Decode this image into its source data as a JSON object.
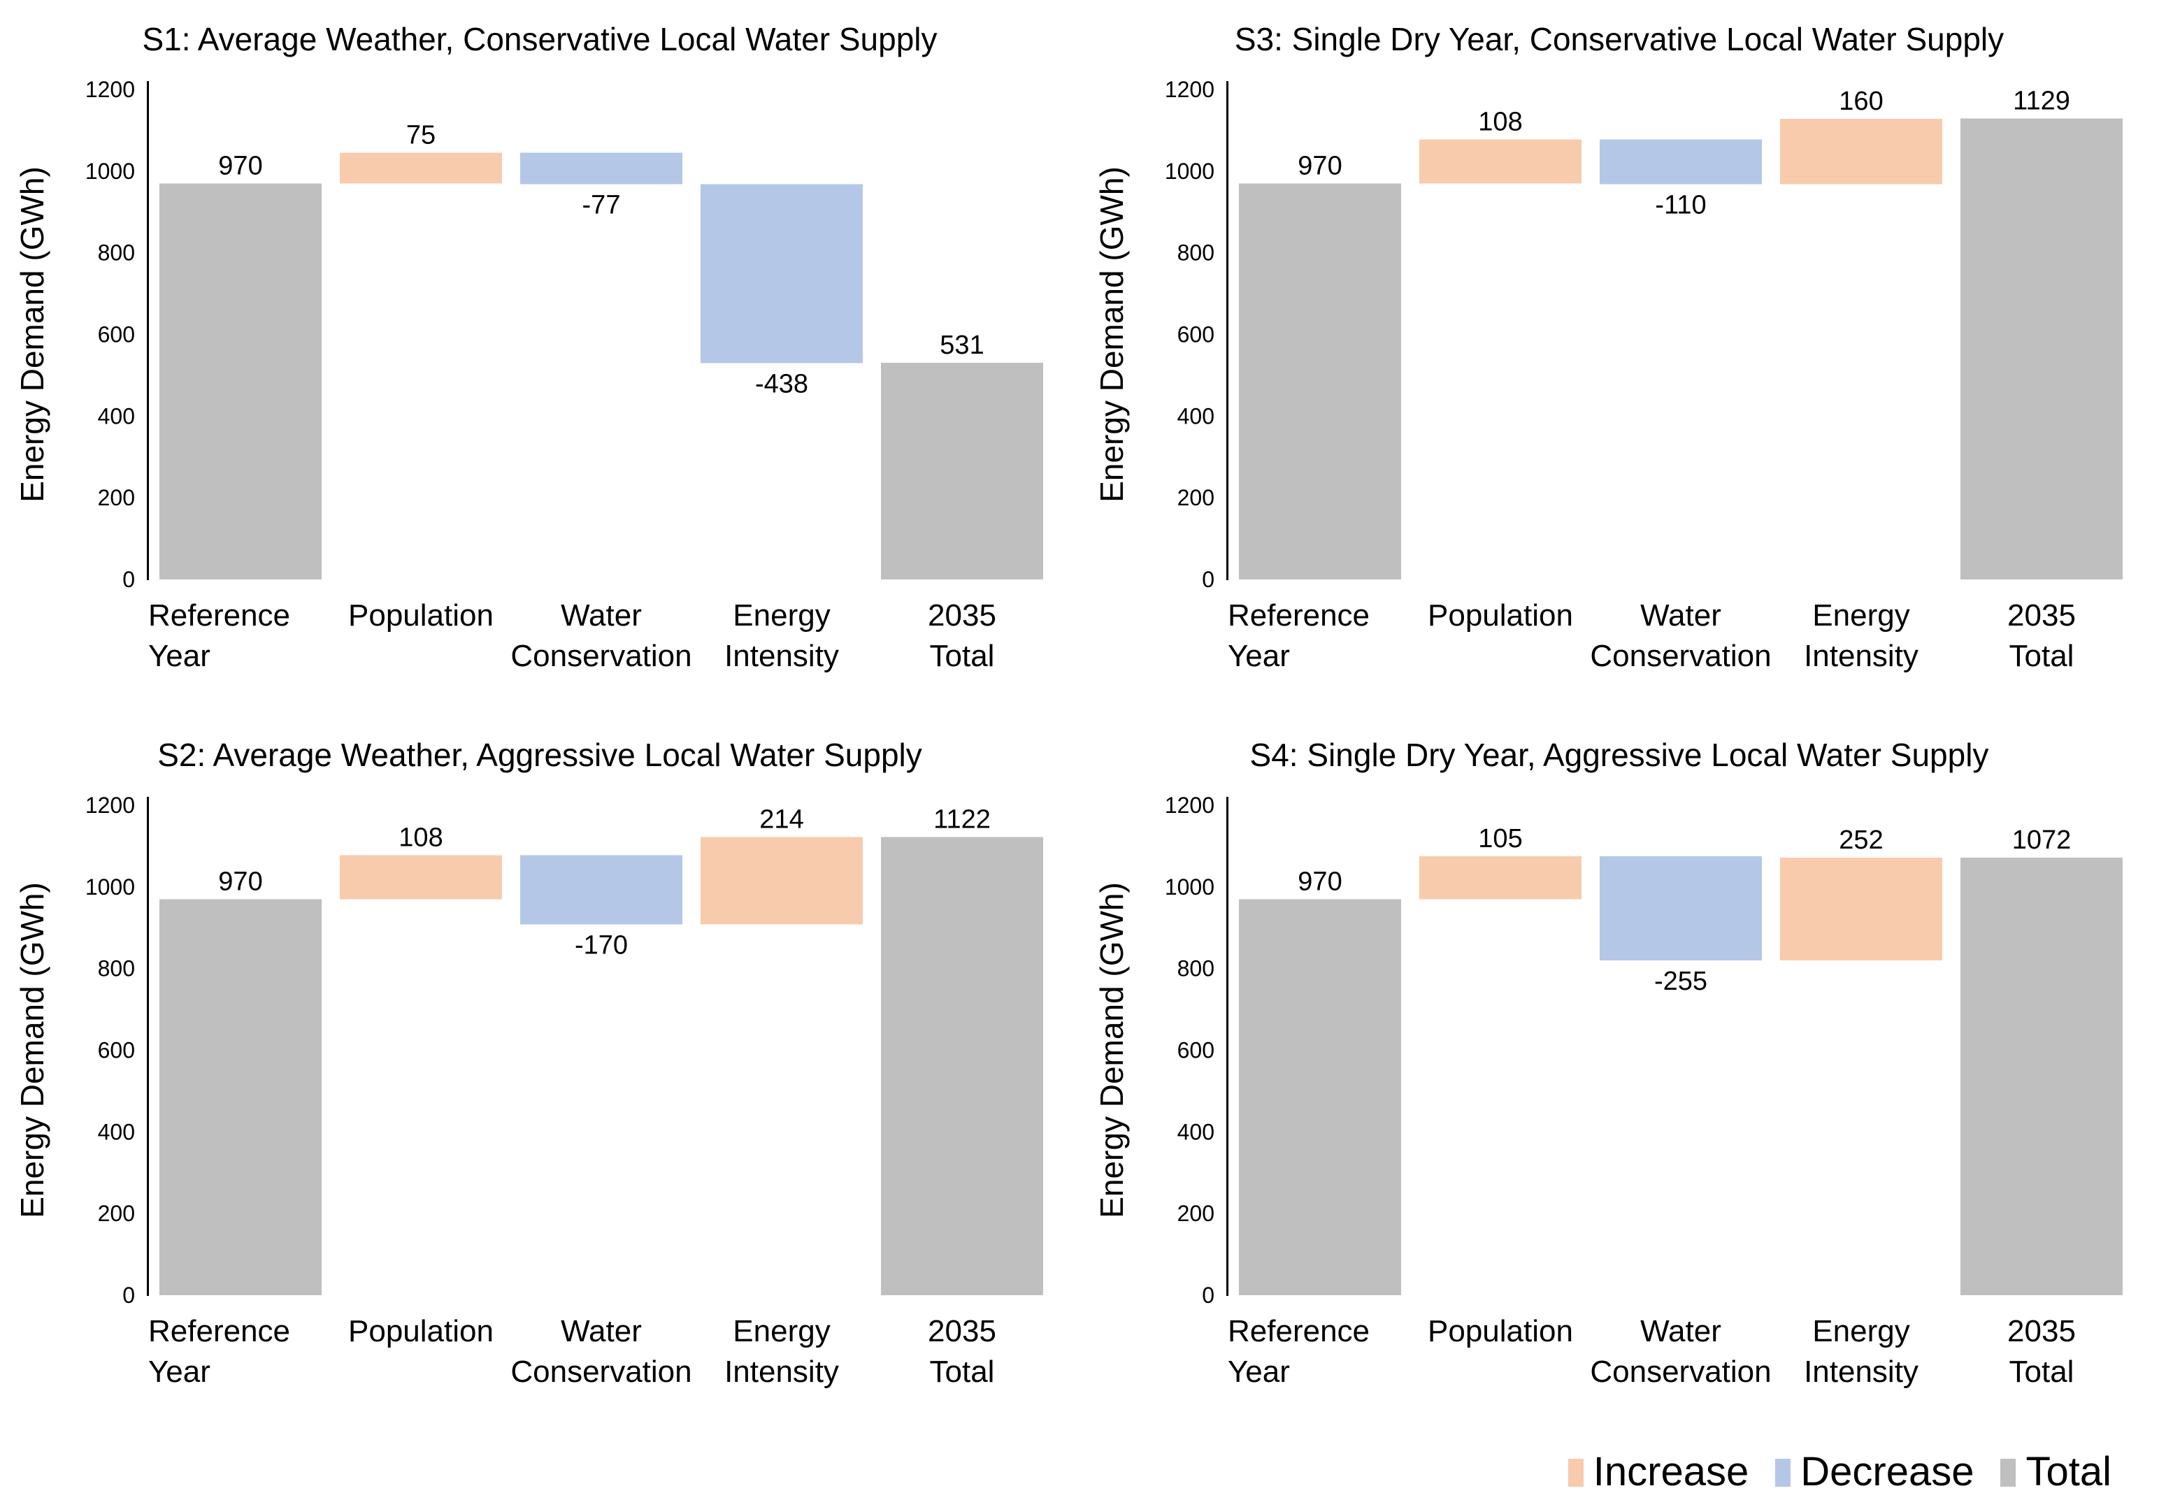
{
  "page": {
    "background": "#ffffff"
  },
  "colors": {
    "increase": "#F8CBAD",
    "decrease": "#B4C7E7",
    "total": "#BFBFBF",
    "axis": "#000000",
    "text": "#000000"
  },
  "legend": {
    "items": [
      {
        "key": "increase",
        "label": "Increase"
      },
      {
        "key": "decrease",
        "label": "Decrease"
      },
      {
        "key": "total",
        "label": "Total"
      }
    ]
  },
  "chart_data": [
    {
      "type": "bar",
      "subtype": "waterfall",
      "id": "s1",
      "grid_position": "top-left",
      "title": "S1: Average Weather, Conservative Local Water Supply",
      "ylabel": "Energy Demand (GWh)",
      "ylim": [
        0,
        1200
      ],
      "yticks": [
        0,
        200,
        400,
        600,
        800,
        1000,
        1200
      ],
      "categories": [
        "Reference Year",
        "Population",
        "Water Conservation",
        "Energy Intensity",
        "2035 Total"
      ],
      "category_lines": [
        [
          "Reference",
          "Year"
        ],
        [
          "Population"
        ],
        [
          "Water",
          "Conservation"
        ],
        [
          "Energy",
          "Intensity"
        ],
        [
          "2035",
          "Total"
        ]
      ],
      "bars": [
        {
          "category": "Reference Year",
          "kind": "total",
          "start": 0,
          "end": 970,
          "label": "970"
        },
        {
          "category": "Population",
          "kind": "increase",
          "start": 970,
          "end": 1045,
          "label": "75"
        },
        {
          "category": "Water Conservation",
          "kind": "decrease",
          "start": 1045,
          "end": 968,
          "label": "-77"
        },
        {
          "category": "Energy Intensity",
          "kind": "decrease",
          "start": 968,
          "end": 530,
          "label": "-438"
        },
        {
          "category": "2035 Total",
          "kind": "total",
          "start": 0,
          "end": 531,
          "label": "531"
        }
      ]
    },
    {
      "type": "bar",
      "subtype": "waterfall",
      "id": "s3",
      "grid_position": "top-right",
      "title": "S3: Single Dry Year, Conservative Local Water Supply",
      "ylabel": "Energy Demand (GWh)",
      "ylim": [
        0,
        1200
      ],
      "yticks": [
        0,
        200,
        400,
        600,
        800,
        1000,
        1200
      ],
      "categories": [
        "Reference Year",
        "Population",
        "Water Conservation",
        "Energy Intensity",
        "2035 Total"
      ],
      "category_lines": [
        [
          "Reference",
          "Year"
        ],
        [
          "Population"
        ],
        [
          "Water",
          "Conservation"
        ],
        [
          "Energy",
          "Intensity"
        ],
        [
          "2035",
          "Total"
        ]
      ],
      "bars": [
        {
          "category": "Reference Year",
          "kind": "total",
          "start": 0,
          "end": 970,
          "label": "970"
        },
        {
          "category": "Population",
          "kind": "increase",
          "start": 970,
          "end": 1078,
          "label": "108"
        },
        {
          "category": "Water Conservation",
          "kind": "decrease",
          "start": 1078,
          "end": 968,
          "label": "-110"
        },
        {
          "category": "Energy Intensity",
          "kind": "increase",
          "start": 968,
          "end": 1128,
          "label": "160"
        },
        {
          "category": "2035 Total",
          "kind": "total",
          "start": 0,
          "end": 1129,
          "label": "1129"
        }
      ]
    },
    {
      "type": "bar",
      "subtype": "waterfall",
      "id": "s2",
      "grid_position": "bottom-left",
      "title": "S2: Average Weather, Aggressive Local Water Supply",
      "ylabel": "Energy Demand (GWh)",
      "ylim": [
        0,
        1200
      ],
      "yticks": [
        0,
        200,
        400,
        600,
        800,
        1000,
        1200
      ],
      "categories": [
        "Reference Year",
        "Population",
        "Water Conservation",
        "Energy Intensity",
        "2035 Total"
      ],
      "category_lines": [
        [
          "Reference",
          "Year"
        ],
        [
          "Population"
        ],
        [
          "Water",
          "Conservation"
        ],
        [
          "Energy",
          "Intensity"
        ],
        [
          "2035",
          "Total"
        ]
      ],
      "bars": [
        {
          "category": "Reference Year",
          "kind": "total",
          "start": 0,
          "end": 970,
          "label": "970"
        },
        {
          "category": "Population",
          "kind": "increase",
          "start": 970,
          "end": 1078,
          "label": "108"
        },
        {
          "category": "Water Conservation",
          "kind": "decrease",
          "start": 1078,
          "end": 908,
          "label": "-170"
        },
        {
          "category": "Energy Intensity",
          "kind": "increase",
          "start": 908,
          "end": 1122,
          "label": "214"
        },
        {
          "category": "2035 Total",
          "kind": "total",
          "start": 0,
          "end": 1122,
          "label": "1122"
        }
      ]
    },
    {
      "type": "bar",
      "subtype": "waterfall",
      "id": "s4",
      "grid_position": "bottom-right",
      "title": "S4: Single Dry Year, Aggressive Local Water Supply",
      "ylabel": "Energy Demand (GWh)",
      "ylim": [
        0,
        1200
      ],
      "yticks": [
        0,
        200,
        400,
        600,
        800,
        1000,
        1200
      ],
      "categories": [
        "Reference Year",
        "Population",
        "Water Conservation",
        "Energy Intensity",
        "2035 Total"
      ],
      "category_lines": [
        [
          "Reference",
          "Year"
        ],
        [
          "Population"
        ],
        [
          "Water",
          "Conservation"
        ],
        [
          "Energy",
          "Intensity"
        ],
        [
          "2035",
          "Total"
        ]
      ],
      "bars": [
        {
          "category": "Reference Year",
          "kind": "total",
          "start": 0,
          "end": 970,
          "label": "970"
        },
        {
          "category": "Population",
          "kind": "increase",
          "start": 970,
          "end": 1075,
          "label": "105"
        },
        {
          "category": "Water Conservation",
          "kind": "decrease",
          "start": 1075,
          "end": 820,
          "label": "-255"
        },
        {
          "category": "Energy Intensity",
          "kind": "increase",
          "start": 820,
          "end": 1072,
          "label": "252"
        },
        {
          "category": "2035 Total",
          "kind": "total",
          "start": 0,
          "end": 1072,
          "label": "1072"
        }
      ]
    }
  ]
}
